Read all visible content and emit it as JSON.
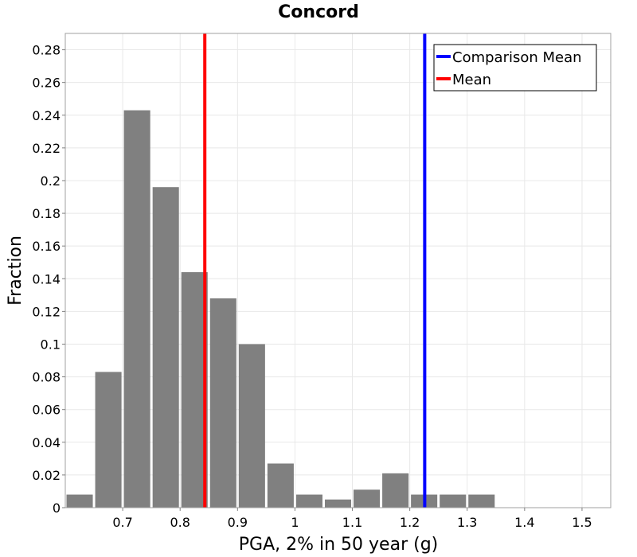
{
  "chart_data": {
    "type": "bar",
    "title": "Concord",
    "xlabel": "PGA, 2% in 50 year (g)",
    "ylabel": "Fraction",
    "xlim": [
      0.6,
      1.55
    ],
    "ylim": [
      0,
      0.29
    ],
    "grid": true,
    "legend_placement": "top-right",
    "bin_width": 0.05,
    "bins": [
      {
        "x": 0.625,
        "value": 0.008
      },
      {
        "x": 0.675,
        "value": 0.083
      },
      {
        "x": 0.725,
        "value": 0.243
      },
      {
        "x": 0.775,
        "value": 0.196
      },
      {
        "x": 0.825,
        "value": 0.144
      },
      {
        "x": 0.875,
        "value": 0.128
      },
      {
        "x": 0.925,
        "value": 0.1
      },
      {
        "x": 0.975,
        "value": 0.027
      },
      {
        "x": 1.025,
        "value": 0.008
      },
      {
        "x": 1.075,
        "value": 0.005
      },
      {
        "x": 1.125,
        "value": 0.011
      },
      {
        "x": 1.175,
        "value": 0.021
      },
      {
        "x": 1.225,
        "value": 0.008
      },
      {
        "x": 1.275,
        "value": 0.008
      },
      {
        "x": 1.325,
        "value": 0.008
      }
    ],
    "bar_color": "#808080",
    "xticks": [
      "0.7",
      "0.8",
      "0.9",
      "1",
      "1.1",
      "1.2",
      "1.3",
      "1.4",
      "1.5"
    ],
    "xtick_values": [
      0.7,
      0.8,
      0.9,
      1.0,
      1.1,
      1.2,
      1.3,
      1.4,
      1.5
    ],
    "yticks": [
      "0",
      "0.02",
      "0.04",
      "0.06",
      "0.08",
      "0.1",
      "0.12",
      "0.14",
      "0.16",
      "0.18",
      "0.2",
      "0.22",
      "0.24",
      "0.26",
      "0.28"
    ],
    "ytick_values": [
      0,
      0.02,
      0.04,
      0.06,
      0.08,
      0.1,
      0.12,
      0.14,
      0.16,
      0.18,
      0.2,
      0.22,
      0.24,
      0.26,
      0.28
    ],
    "lines": [
      {
        "name": "Comparison Mean",
        "x": 1.226,
        "color": "#0000ff"
      },
      {
        "name": "Mean",
        "x": 0.843,
        "color": "#ff0000"
      }
    ]
  }
}
